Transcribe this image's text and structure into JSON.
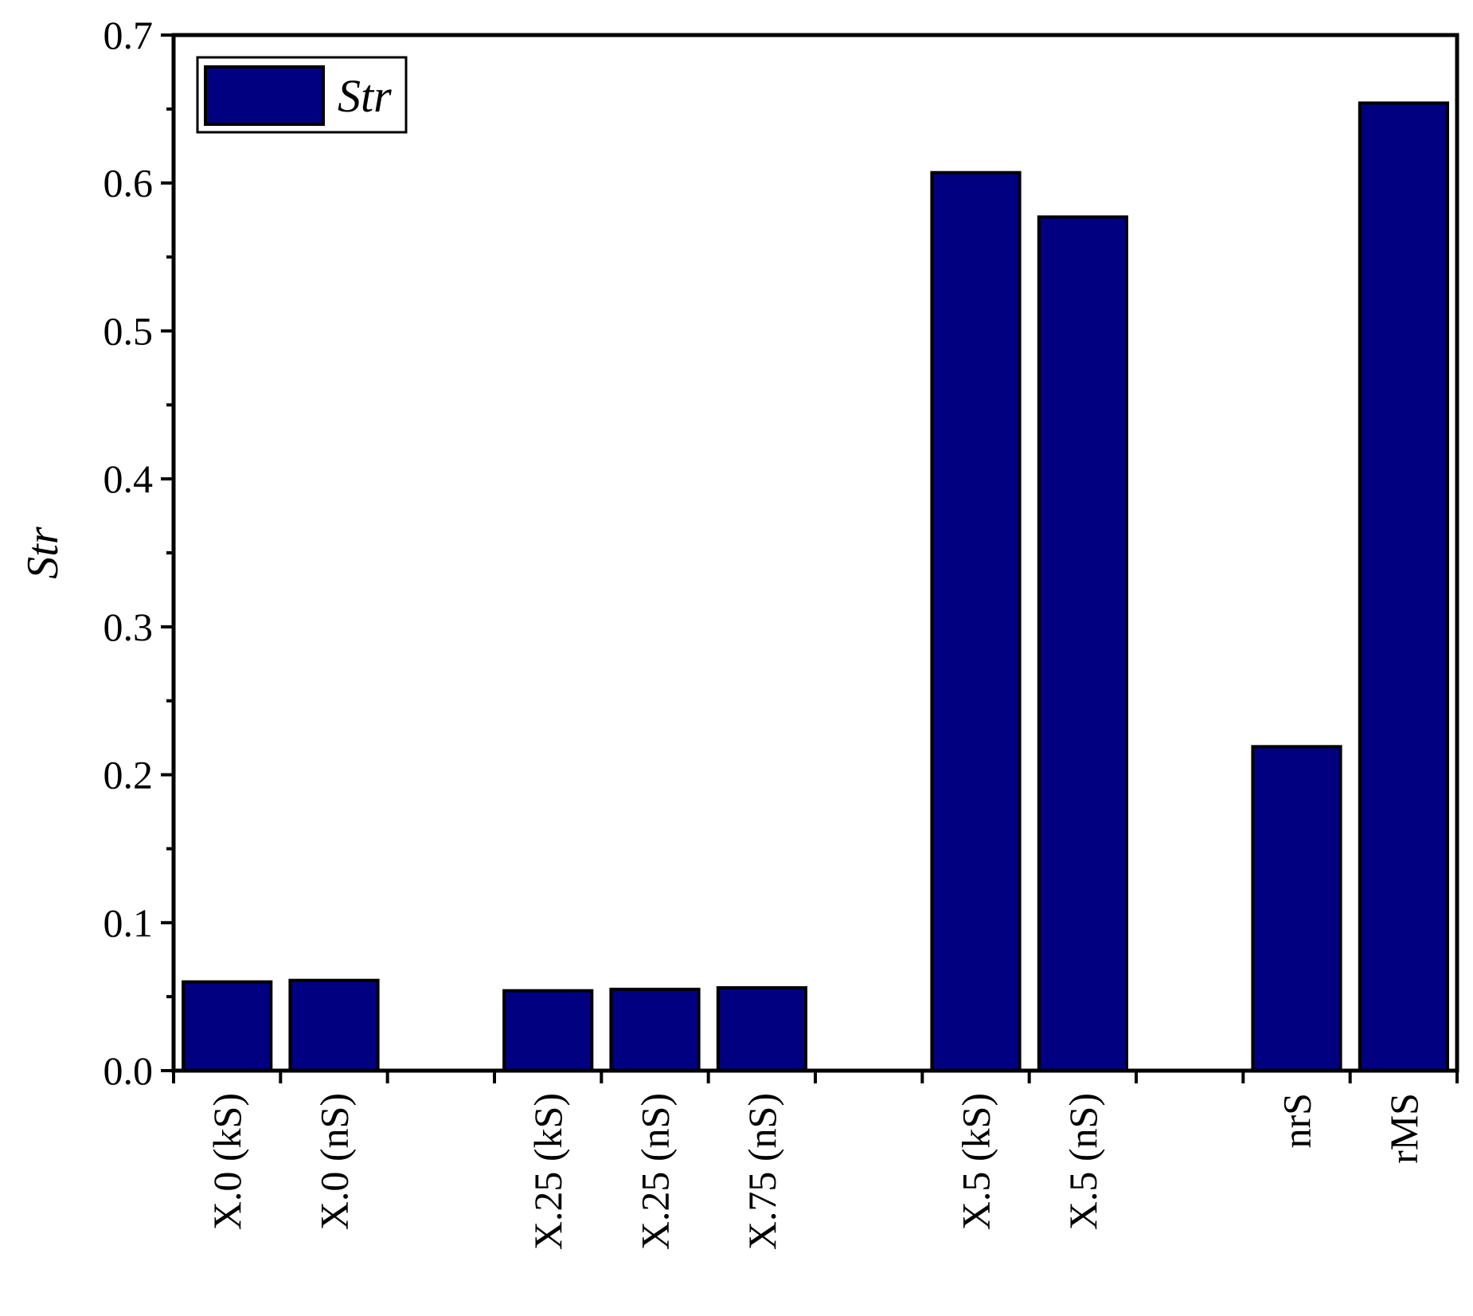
{
  "chart_data": {
    "type": "bar",
    "ylabel": "Str",
    "ylim": [
      0,
      0.7
    ],
    "yticks": [
      "0.0",
      "0.1",
      "0.2",
      "0.3",
      "0.4",
      "0.5",
      "0.6",
      "0.7"
    ],
    "slots": 12,
    "categories": [
      {
        "label": "X.0 (kS)",
        "slot": 0
      },
      {
        "label": "X.0 (nS)",
        "slot": 1
      },
      {
        "label": "X.25 (kS)",
        "slot": 3
      },
      {
        "label": "X.25 (nS)",
        "slot": 4
      },
      {
        "label": "X.75 (nS)",
        "slot": 5
      },
      {
        "label": "X.5 (kS)",
        "slot": 7
      },
      {
        "label": "X.5 (nS)",
        "slot": 8
      },
      {
        "label": "nrS",
        "slot": 10
      },
      {
        "label": "rMS",
        "slot": 11
      }
    ],
    "series": [
      {
        "name": "Str",
        "values": [
          0.06,
          0.061,
          0.054,
          0.055,
          0.056,
          0.607,
          0.577,
          0.219,
          0.654
        ]
      }
    ],
    "legend": {
      "position": "top-left",
      "label": "Str"
    },
    "grid": false,
    "colors": {
      "bar_fill": "#000080",
      "bar_stroke": "#000000",
      "axis": "#000000"
    }
  }
}
